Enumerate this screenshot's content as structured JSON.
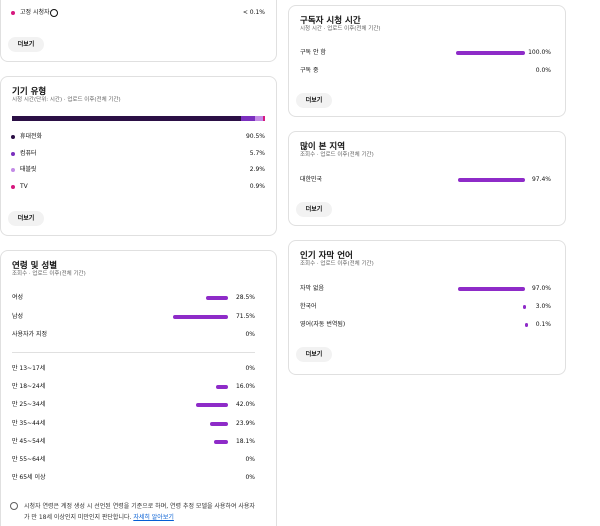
{
  "top_card": {
    "rows": [
      {
        "label": "고정 시청자",
        "percent": "< 0.1%",
        "color": "#d6187e"
      }
    ],
    "button": "더보기"
  },
  "device": {
    "title": "기기 유형",
    "subtitle": "시청 시간(단위: 시간) · 업로드 이후(전체 기간)",
    "segments": [
      {
        "label": "휴대전화",
        "value": 90.5,
        "percent": "90.5%",
        "color": "#2b0f45"
      },
      {
        "label": "컴퓨터",
        "value": 5.7,
        "percent": "5.7%",
        "color": "#7b2fbe"
      },
      {
        "label": "태블릿",
        "value": 2.9,
        "percent": "2.9%",
        "color": "#c38be6"
      },
      {
        "label": "TV",
        "value": 0.9,
        "percent": "0.9%",
        "color": "#d6187e"
      }
    ],
    "button": "더보기"
  },
  "age_gender": {
    "title": "연령 및 성별",
    "subtitle": "조회수 · 업로드 이후(전체 기간)",
    "color": "#8e2bc8",
    "gender": [
      {
        "label": "여성",
        "value": 28.5,
        "percent": "28.5%"
      },
      {
        "label": "남성",
        "value": 71.5,
        "percent": "71.5%"
      },
      {
        "label": "사용자가 지정",
        "value": 0,
        "percent": "0%"
      }
    ],
    "age": [
      {
        "label": "만 13~17세",
        "value": 0,
        "percent": "0%"
      },
      {
        "label": "만 18~24세",
        "value": 16.0,
        "percent": "16.0%"
      },
      {
        "label": "만 25~34세",
        "value": 42.0,
        "percent": "42.0%"
      },
      {
        "label": "만 35~44세",
        "value": 23.9,
        "percent": "23.9%"
      },
      {
        "label": "만 45~54세",
        "value": 18.1,
        "percent": "18.1%"
      },
      {
        "label": "만 55~64세",
        "value": 0,
        "percent": "0%"
      },
      {
        "label": "만 65세 이상",
        "value": 0,
        "percent": "0%"
      }
    ],
    "note": "시청자 연령은 계정 생성 시 선언된 연령을 기준으로 하며, 연령 추정 모델을 사용하여 사용자가 만 18세 이상인지 미만인지 판단합니다.",
    "link": "자세히 알아보기"
  },
  "subscriber": {
    "title": "구독자 시청 시간",
    "subtitle": "시청 시간 · 업로드 이후(전체 기간)",
    "color": "#8e2bc8",
    "rows": [
      {
        "label": "구독 안 함",
        "value": 100.0,
        "percent": "100.0%"
      },
      {
        "label": "구독 중",
        "value": 0.0,
        "percent": "0.0%"
      }
    ],
    "button": "더보기"
  },
  "geography": {
    "title": "많이 본 지역",
    "subtitle": "조회수 · 업로드 이후(전체 기간)",
    "color": "#8e2bc8",
    "rows": [
      {
        "label": "대한민국",
        "value": 97.4,
        "percent": "97.4%"
      }
    ],
    "button": "더보기"
  },
  "captions": {
    "title": "인기 자막 언어",
    "subtitle": "조회수 · 업로드 이후(전체 기간)",
    "color": "#8e2bc8",
    "rows": [
      {
        "label": "자막 없음",
        "value": 97.0,
        "percent": "97.0%"
      },
      {
        "label": "한국어",
        "value": 3.0,
        "percent": "3.0%"
      },
      {
        "label": "영어(자동 번역됨)",
        "value": 0.1,
        "percent": "0.1%"
      }
    ],
    "button": "더보기"
  }
}
